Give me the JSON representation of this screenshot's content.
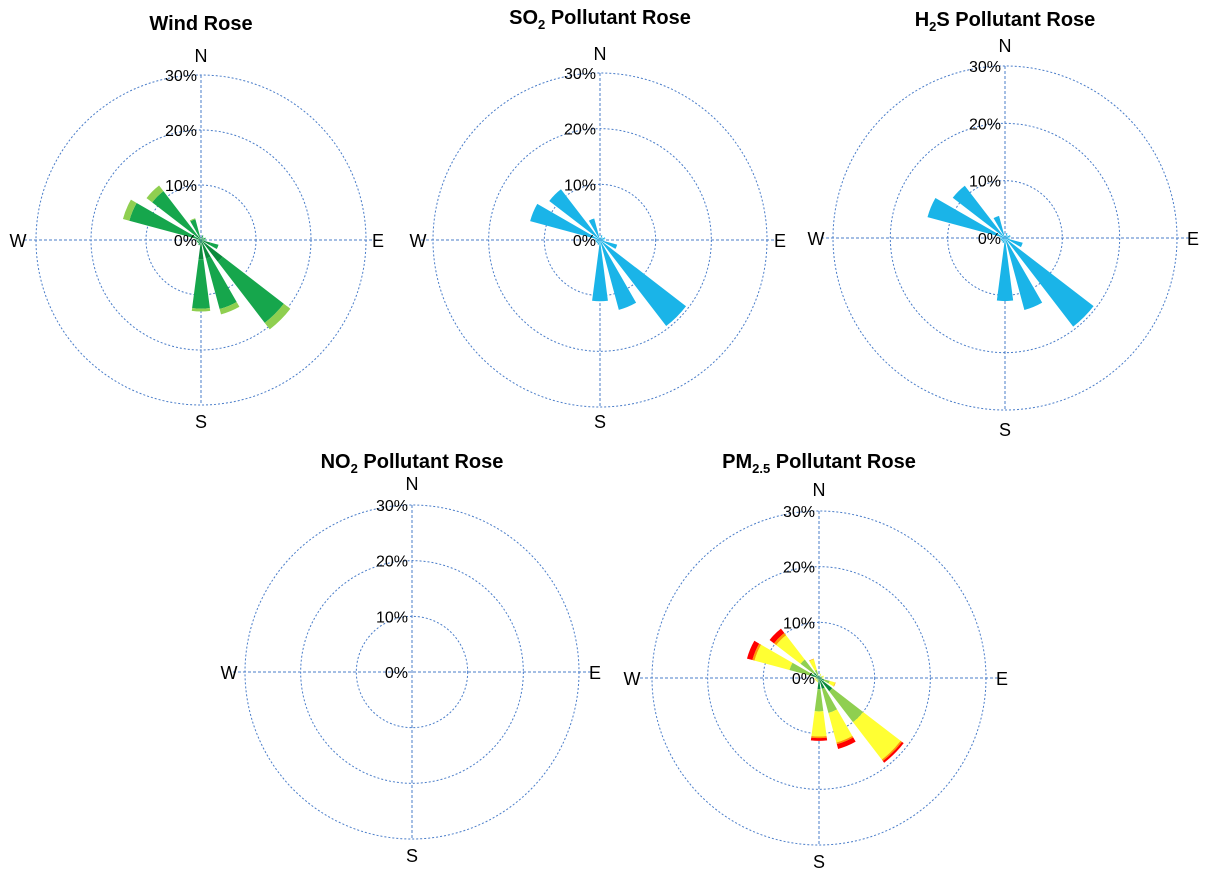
{
  "colors": {
    "grid": "#4a7dc9",
    "single": "#1ab4e8",
    "wind_calm": "#0a8a3c",
    "wind_light": "#16a64c",
    "wind_moderate": "#8fcf50",
    "pm_low": "#0a8a3c",
    "pm_moderate": "#8fcf50",
    "pm_high": "#ffff33",
    "pm_higher": "#ff9900",
    "pm_highest": "#ff0000"
  },
  "chart_data": [
    {
      "type": "polar-bar",
      "title_main": "Wind Rose",
      "title_sub": "",
      "title_suffix": "",
      "directions": [
        "N",
        "NNE",
        "NE",
        "ENE",
        "E",
        "ESE",
        "SE",
        "SSE",
        "S",
        "SSW",
        "SW",
        "WSW",
        "W",
        "WNW",
        "NW",
        "NNW"
      ],
      "cardinals": {
        "N": "N",
        "E": "E",
        "S": "S",
        "W": "W"
      },
      "ring_labels": [
        "0%",
        "10%",
        "20%",
        "30%"
      ],
      "rlim": [
        0,
        30
      ],
      "stacked": true,
      "series": [
        {
          "color_key": "wind_calm",
          "values": [
            0,
            0.6,
            0.4,
            0.6,
            0.5,
            1.8,
            5.0,
            3.5,
            3.5,
            0.6,
            0.5,
            0.5,
            0.6,
            1.0,
            1.2,
            0.6
          ]
        },
        {
          "color_key": "wind_light",
          "values": [
            0,
            0.3,
            0.2,
            0.3,
            0.3,
            1.5,
            14.0,
            9.5,
            9.0,
            0.4,
            0.3,
            0.3,
            0.3,
            12.5,
            10.0,
            3.3
          ]
        },
        {
          "color_key": "wind_moderate",
          "values": [
            0,
            0,
            0,
            0,
            0,
            0,
            1.5,
            1.0,
            0.5,
            0,
            0,
            0,
            0,
            1.2,
            1.3,
            0.2
          ]
        }
      ]
    },
    {
      "type": "polar-bar",
      "title_main": "SO",
      "title_sub": "2",
      "title_suffix": "  Pollutant Rose",
      "directions": [
        "N",
        "NNE",
        "NE",
        "ENE",
        "E",
        "ESE",
        "SE",
        "SSE",
        "S",
        "SSW",
        "SW",
        "WSW",
        "W",
        "WNW",
        "NW",
        "NNW"
      ],
      "cardinals": {
        "N": "N",
        "E": "E",
        "S": "S",
        "W": "W"
      },
      "ring_labels": [
        "0%",
        "10%",
        "20%",
        "30%"
      ],
      "rlim": [
        0,
        30
      ],
      "stacked": false,
      "series": [
        {
          "color_key": "single",
          "values": [
            0,
            0.9,
            0.6,
            1.0,
            0.8,
            3.2,
            19.5,
            13.0,
            11.0,
            0.9,
            0.8,
            0.8,
            0.9,
            13.0,
            11.5,
            4.0
          ]
        }
      ]
    },
    {
      "type": "polar-bar",
      "title_main": "H",
      "title_sub": "2",
      "title_suffix": "S Pollutant Rose",
      "directions": [
        "N",
        "NNE",
        "NE",
        "ENE",
        "E",
        "ESE",
        "SE",
        "SSE",
        "S",
        "SSW",
        "SW",
        "WSW",
        "W",
        "WNW",
        "NW",
        "NNW"
      ],
      "cardinals": {
        "N": "N",
        "E": "E",
        "S": "S",
        "W": "W"
      },
      "ring_labels": [
        "0%",
        "10%",
        "20%",
        "30%"
      ],
      "rlim": [
        0,
        30
      ],
      "stacked": false,
      "series": [
        {
          "color_key": "single",
          "values": [
            0,
            0.9,
            0.6,
            1.0,
            0.8,
            3.2,
            19.5,
            13.0,
            11.0,
            0.9,
            0.8,
            0.8,
            0.9,
            14.0,
            11.5,
            4.0
          ]
        }
      ]
    },
    {
      "type": "polar-bar",
      "title_main": "NO",
      "title_sub": "2",
      "title_suffix": " Pollutant Rose",
      "directions": [
        "N",
        "NNE",
        "NE",
        "ENE",
        "E",
        "ESE",
        "SE",
        "SSE",
        "S",
        "SSW",
        "SW",
        "WSW",
        "W",
        "WNW",
        "NW",
        "NNW"
      ],
      "cardinals": {
        "N": "N",
        "E": "E",
        "S": "S",
        "W": "W"
      },
      "ring_labels": [
        "0%",
        "10%",
        "20%",
        "30%"
      ],
      "rlim": [
        0,
        30
      ],
      "stacked": false,
      "series": []
    },
    {
      "type": "polar-bar",
      "title_main": "PM",
      "title_sub": "2.5",
      "title_suffix": " Pollutant Rose",
      "directions": [
        "N",
        "NNE",
        "NE",
        "ENE",
        "E",
        "ESE",
        "SE",
        "SSE",
        "S",
        "SSW",
        "SW",
        "WSW",
        "W",
        "WNW",
        "NW",
        "NNW"
      ],
      "cardinals": {
        "N": "N",
        "E": "E",
        "S": "S",
        "W": "W"
      },
      "ring_labels": [
        "0%",
        "10%",
        "20%",
        "30%"
      ],
      "rlim": [
        0,
        30
      ],
      "stacked": true,
      "series": [
        {
          "color_key": "pm_low",
          "values": [
            0,
            0.3,
            0.2,
            0.3,
            0.3,
            1.0,
            3.0,
            2.0,
            2.0,
            0.3,
            0.2,
            0.2,
            0.3,
            1.5,
            1.2,
            0.5
          ]
        },
        {
          "color_key": "pm_moderate",
          "values": [
            0,
            0.3,
            0.2,
            0.3,
            0.3,
            1.0,
            7.0,
            4.5,
            4.0,
            0.3,
            0.3,
            0.3,
            0.3,
            4.0,
            3.0,
            1.0
          ]
        },
        {
          "color_key": "pm_high",
          "values": [
            0,
            0.2,
            0,
            0.3,
            0.2,
            1.0,
            8.5,
            5.5,
            4.5,
            0.2,
            0.3,
            0.3,
            0.2,
            6.5,
            5.5,
            2.0
          ]
        },
        {
          "color_key": "pm_higher",
          "values": [
            0,
            0,
            0,
            0,
            0,
            0.1,
            0.3,
            0.3,
            0.3,
            0,
            0,
            0,
            0,
            0.4,
            0.5,
            0.1
          ]
        },
        {
          "color_key": "pm_highest",
          "values": [
            0,
            0,
            0,
            0,
            0,
            0,
            0.4,
            0.9,
            0.5,
            0,
            0,
            0,
            0,
            1.0,
            1.0,
            0
          ]
        }
      ]
    }
  ]
}
